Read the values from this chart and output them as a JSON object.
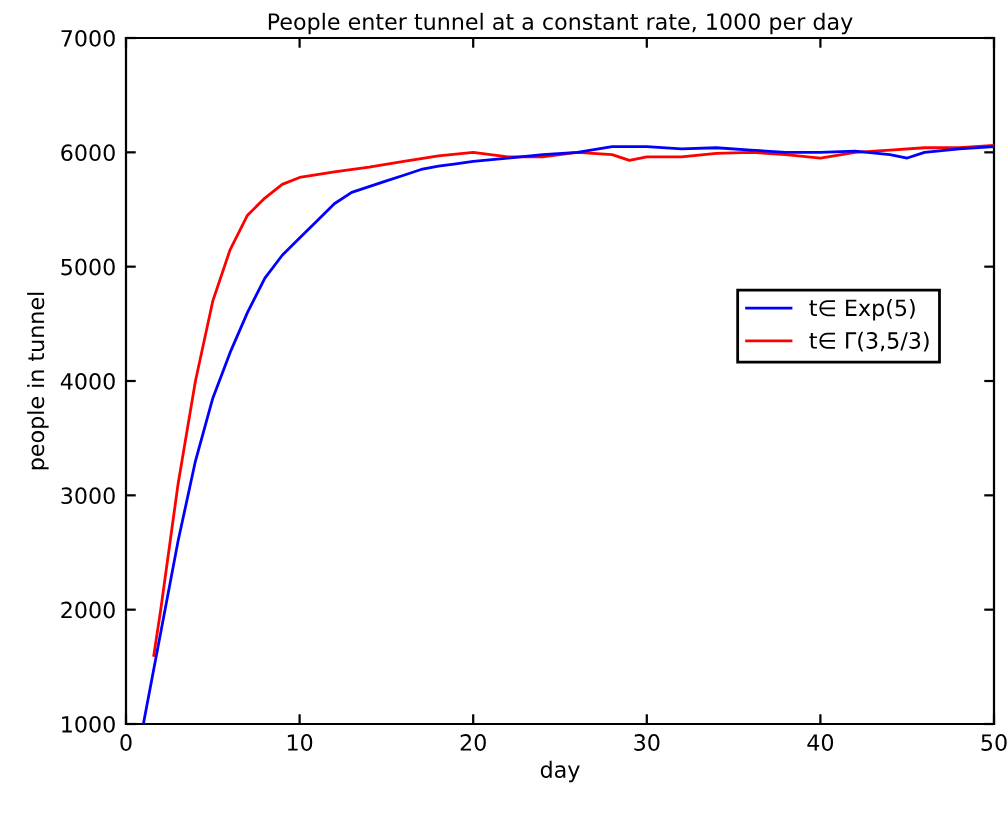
{
  "chart_data": {
    "type": "line",
    "title": "People enter tunnel at a constant rate, 1000 per day",
    "xlabel": "day",
    "ylabel": "people in tunnel",
    "xlim": [
      0,
      50
    ],
    "xticks": [
      0,
      10,
      20,
      30,
      40,
      50
    ],
    "ylim": [
      1000,
      7000
    ],
    "yticks": [
      1000,
      2000,
      3000,
      4000,
      5000,
      6000,
      7000
    ],
    "grid": false,
    "legend": "right",
    "series": [
      {
        "name": "t∈ Exp(5)",
        "color": "#0000ff",
        "x": [
          1,
          2,
          3,
          4,
          5,
          6,
          7,
          8,
          9,
          10,
          11,
          12,
          13,
          14,
          15,
          16,
          17,
          18,
          19,
          20,
          22,
          24,
          26,
          28,
          30,
          32,
          34,
          36,
          38,
          40,
          42,
          44,
          45,
          46,
          48,
          50
        ],
        "values": [
          1000,
          1800,
          2600,
          3300,
          3850,
          4250,
          4600,
          4900,
          5100,
          5250,
          5400,
          5550,
          5650,
          5700,
          5750,
          5800,
          5850,
          5880,
          5900,
          5920,
          5950,
          5980,
          6000,
          6050,
          6050,
          6030,
          6040,
          6020,
          6000,
          6000,
          6010,
          5980,
          5950,
          6000,
          6030,
          6050
        ]
      },
      {
        "name": "t∈ Γ(3,5/3)",
        "color": "#ff0000",
        "x": [
          1.6,
          2,
          3,
          4,
          5,
          6,
          7,
          8,
          9,
          10,
          12,
          14,
          16,
          18,
          20,
          22,
          24,
          26,
          28,
          29,
          30,
          32,
          34,
          36,
          38,
          40,
          42,
          44,
          46,
          48,
          50
        ],
        "values": [
          1600,
          2000,
          3100,
          4000,
          4700,
          5150,
          5450,
          5600,
          5720,
          5780,
          5830,
          5870,
          5920,
          5970,
          6000,
          5960,
          5960,
          6000,
          5980,
          5930,
          5960,
          5960,
          5990,
          6000,
          5980,
          5950,
          6000,
          6020,
          6040,
          6040,
          6060
        ]
      }
    ]
  }
}
